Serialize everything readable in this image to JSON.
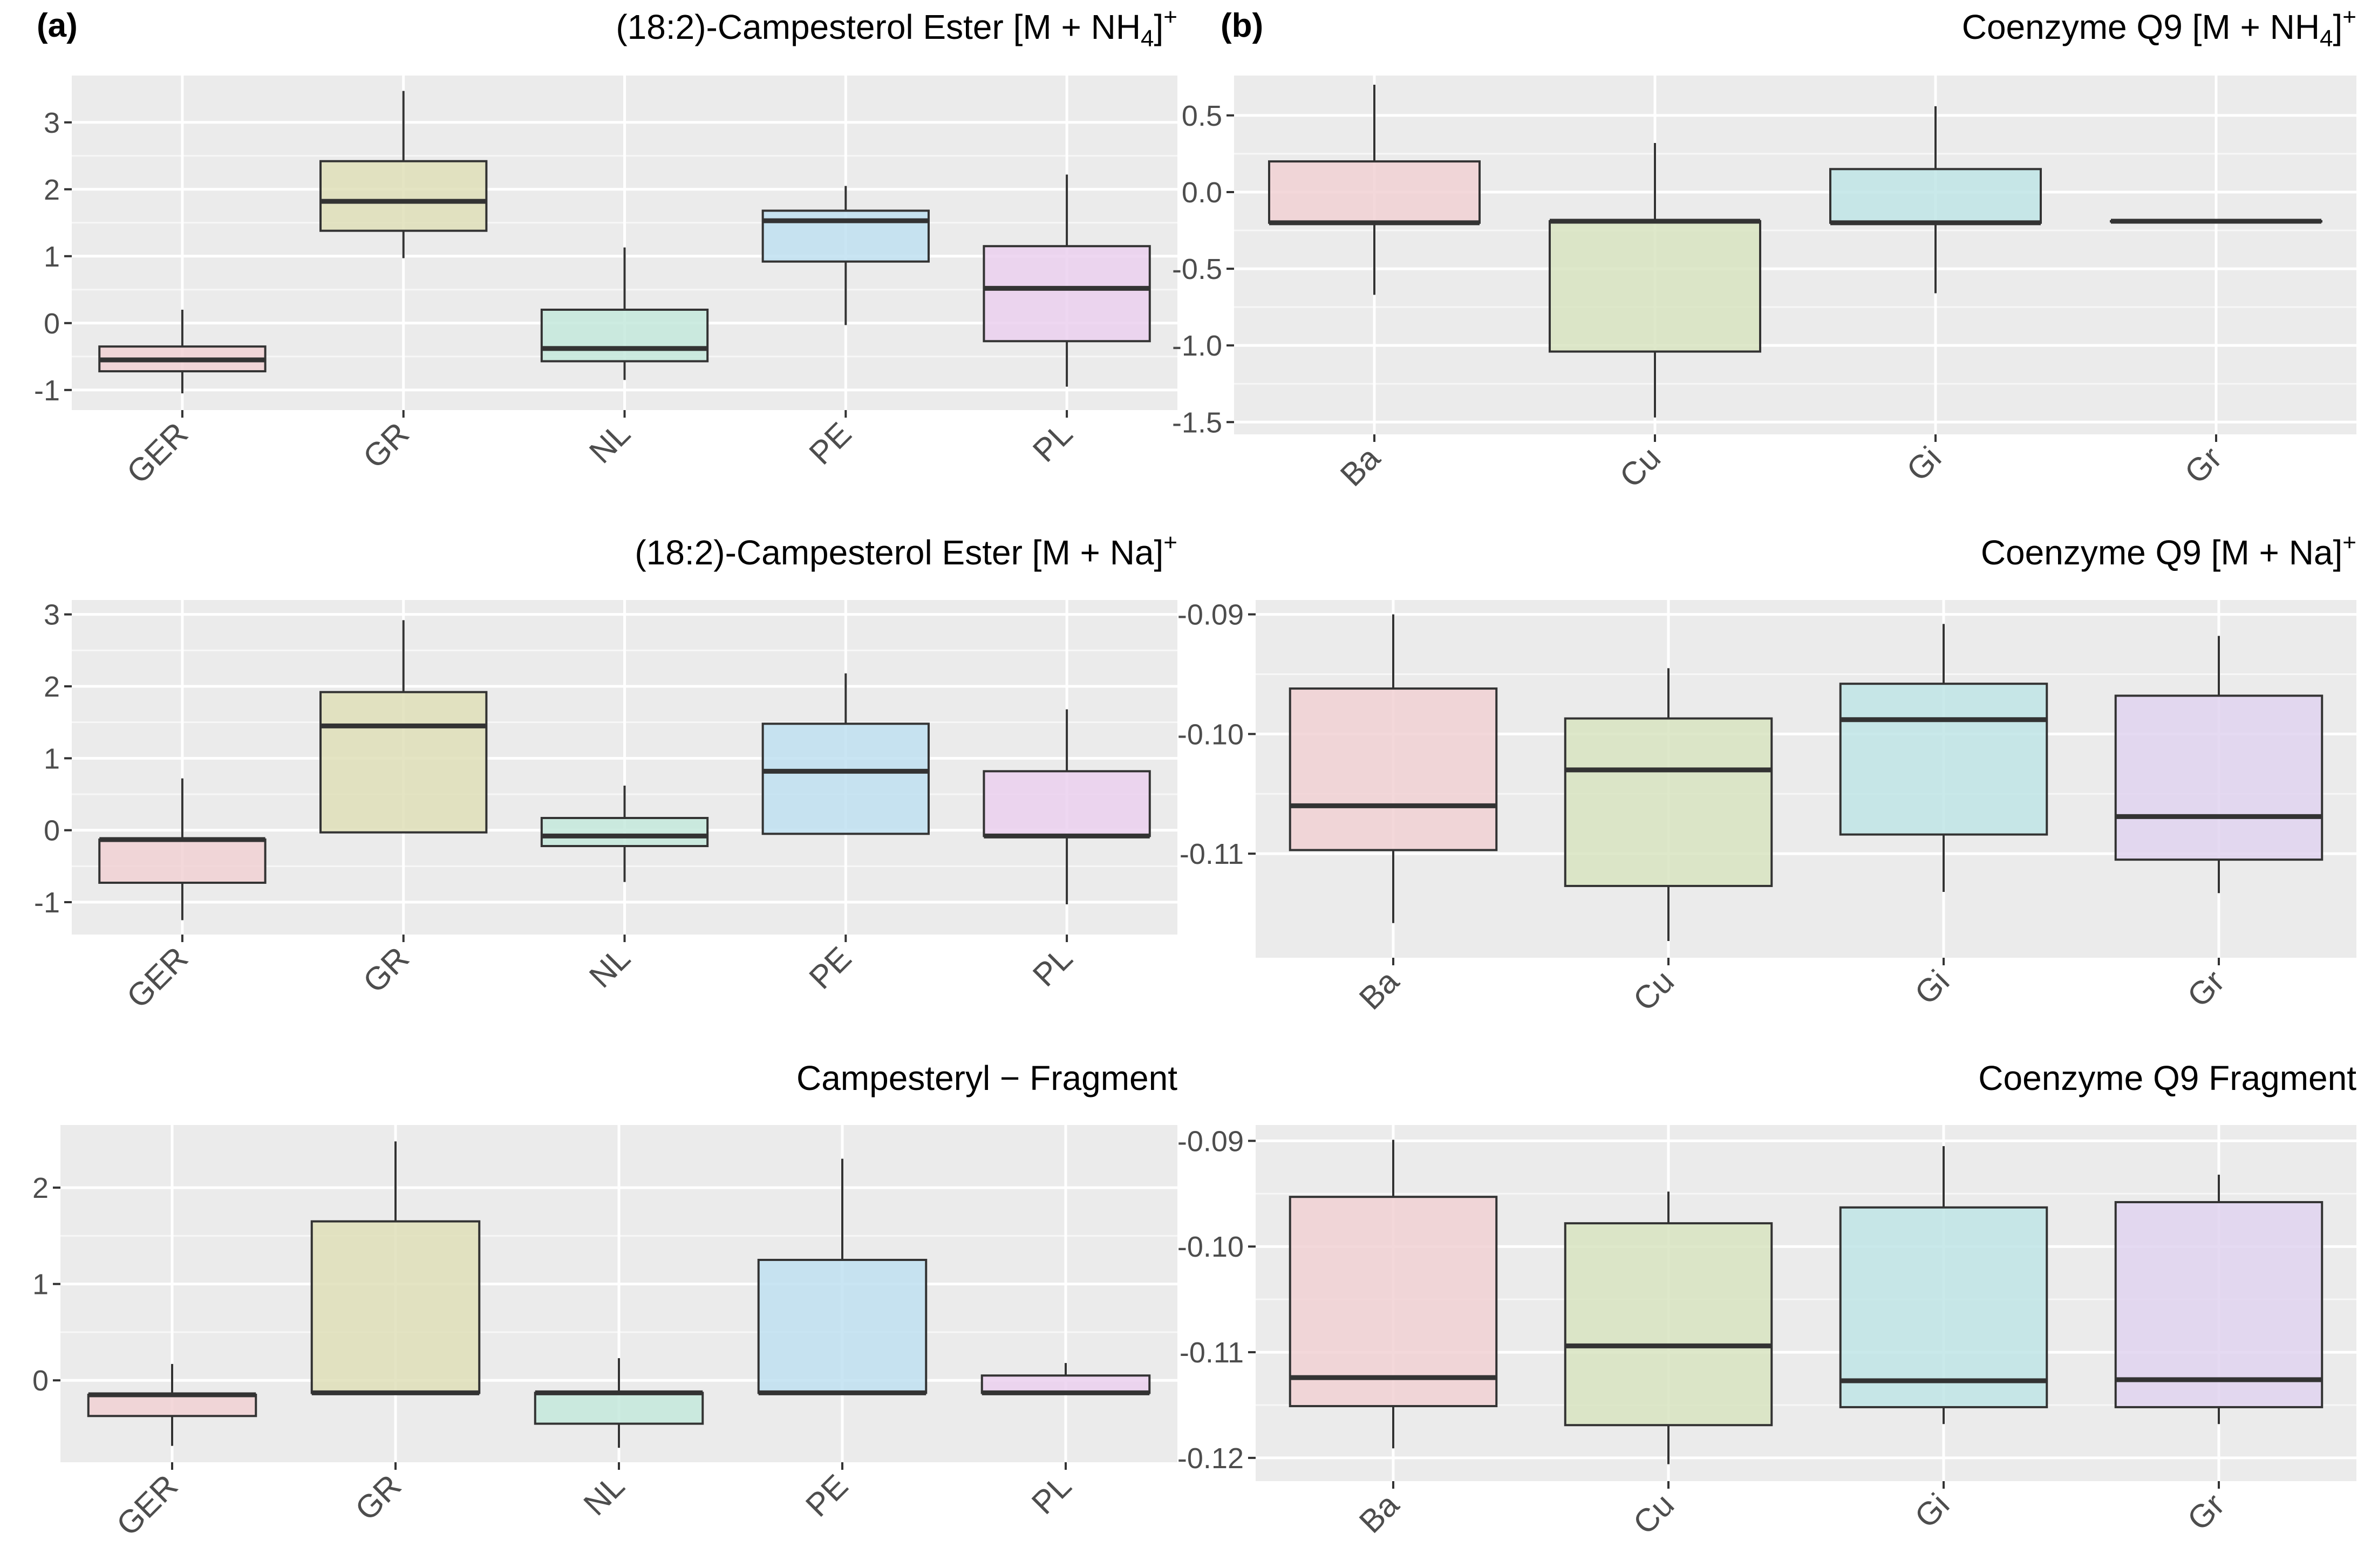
{
  "panel_labels": {
    "a": "(a)",
    "b": "(b)"
  },
  "chart_data": [
    {
      "type": "box",
      "id": "a1",
      "title": "(18:2)-Campesterol Ester [M + NH",
      "title_sub": "4",
      "title_end": "]",
      "title_sup": "+",
      "categories": [
        "GER",
        "GR",
        "NL",
        "PE",
        "PL"
      ],
      "yticks": [
        -1,
        0,
        1,
        2,
        3
      ],
      "yticklabels": [
        "-1",
        "0",
        "1",
        "2",
        "3"
      ],
      "ylim": [
        -1.3,
        3.7
      ],
      "boxes": [
        {
          "category": "GER",
          "whisker_low": -1.05,
          "q1": -0.72,
          "median": -0.55,
          "q3": -0.35,
          "whisker_high": 0.2,
          "fill": "#f1d1d4"
        },
        {
          "category": "GR",
          "whisker_low": 0.97,
          "q1": 1.38,
          "median": 1.82,
          "q3": 2.42,
          "whisker_high": 3.47,
          "fill": "#dfdfb8"
        },
        {
          "category": "NL",
          "whisker_low": -0.85,
          "q1": -0.57,
          "median": -0.38,
          "q3": 0.2,
          "whisker_high": 1.13,
          "fill": "#c4e9dc"
        },
        {
          "category": "PE",
          "whisker_low": -0.03,
          "q1": 0.92,
          "median": 1.53,
          "q3": 1.68,
          "whisker_high": 2.05,
          "fill": "#bfe0f1"
        },
        {
          "category": "PL",
          "whisker_low": -0.95,
          "q1": -0.27,
          "median": 0.52,
          "q3": 1.15,
          "whisker_high": 2.22,
          "fill": "#ebd0ee"
        }
      ]
    },
    {
      "type": "box",
      "id": "a2",
      "title": "(18:2)-Campesterol Ester [M + Na]",
      "title_sup": "+",
      "categories": [
        "GER",
        "GR",
        "NL",
        "PE",
        "PL"
      ],
      "yticks": [
        -1,
        0,
        1,
        2,
        3
      ],
      "yticklabels": [
        "-1",
        "0",
        "1",
        "2",
        "3"
      ],
      "ylim": [
        -1.45,
        3.2
      ],
      "boxes": [
        {
          "category": "GER",
          "whisker_low": -1.25,
          "q1": -0.73,
          "median": -0.13,
          "q3": -0.13,
          "whisker_high": 0.72,
          "fill": "#f1d1d4"
        },
        {
          "category": "GR",
          "whisker_low": -0.03,
          "q1": -0.03,
          "median": 1.45,
          "q3": 1.92,
          "whisker_high": 2.92,
          "fill": "#dfdfb8"
        },
        {
          "category": "NL",
          "whisker_low": -0.72,
          "q1": -0.22,
          "median": -0.08,
          "q3": 0.17,
          "whisker_high": 0.62,
          "fill": "#c4e9dc"
        },
        {
          "category": "PE",
          "whisker_low": -0.05,
          "q1": -0.05,
          "median": 0.82,
          "q3": 1.48,
          "whisker_high": 2.18,
          "fill": "#bfe0f1"
        },
        {
          "category": "PL",
          "whisker_low": -1.03,
          "q1": -0.08,
          "median": -0.08,
          "q3": 0.82,
          "whisker_high": 1.68,
          "fill": "#ebd0ee"
        }
      ]
    },
    {
      "type": "box",
      "id": "a3",
      "title": "Campesteryl − Fragment",
      "categories": [
        "GER",
        "GR",
        "NL",
        "PE",
        "PL"
      ],
      "yticks": [
        0,
        1,
        2
      ],
      "yticklabels": [
        "0",
        "1",
        "2"
      ],
      "ylim": [
        -0.85,
        2.65
      ],
      "boxes": [
        {
          "category": "GER",
          "whisker_low": -0.68,
          "q1": -0.37,
          "median": -0.15,
          "q3": -0.15,
          "whisker_high": 0.17,
          "fill": "#f1d1d4"
        },
        {
          "category": "GR",
          "whisker_low": -0.13,
          "q1": -0.13,
          "median": -0.13,
          "q3": 1.65,
          "whisker_high": 2.48,
          "fill": "#dfdfb8"
        },
        {
          "category": "NL",
          "whisker_low": -0.7,
          "q1": -0.45,
          "median": -0.13,
          "q3": -0.13,
          "whisker_high": 0.23,
          "fill": "#c4e9dc"
        },
        {
          "category": "PE",
          "whisker_low": -0.13,
          "q1": -0.13,
          "median": -0.13,
          "q3": 1.25,
          "whisker_high": 2.3,
          "fill": "#bfe0f1"
        },
        {
          "category": "PL",
          "whisker_low": -0.13,
          "q1": -0.13,
          "median": -0.13,
          "q3": 0.05,
          "whisker_high": 0.18,
          "fill": "#ebd0ee"
        }
      ]
    },
    {
      "type": "box",
      "id": "b1",
      "title": "Coenzyme Q9 [M + NH",
      "title_sub": "4",
      "title_end": "]",
      "title_sup": "+",
      "categories": [
        "Ba",
        "Cu",
        "Gi",
        "Gr"
      ],
      "yticks": [
        -1.5,
        -1.0,
        -0.5,
        0.0,
        0.5
      ],
      "yticklabels": [
        "-1.5",
        "-1.0",
        "-0.5",
        "0.0",
        "0.5"
      ],
      "ylim": [
        -1.58,
        0.76
      ],
      "boxes": [
        {
          "category": "Ba",
          "whisker_low": -0.67,
          "q1": -0.2,
          "median": -0.2,
          "q3": 0.2,
          "whisker_high": 0.7,
          "fill": "#f1d1d4"
        },
        {
          "category": "Cu",
          "whisker_low": -1.47,
          "q1": -1.04,
          "median": -0.19,
          "q3": -0.19,
          "whisker_high": 0.32,
          "fill": "#d8e4c1"
        },
        {
          "category": "Gi",
          "whisker_low": -0.66,
          "q1": -0.2,
          "median": -0.2,
          "q3": 0.15,
          "whisker_high": 0.56,
          "fill": "#bfe5e6"
        },
        {
          "category": "Gr",
          "whisker_low": -0.19,
          "q1": -0.19,
          "median": -0.19,
          "q3": -0.19,
          "whisker_high": -0.19,
          "fill": "#e1d3f0"
        }
      ]
    },
    {
      "type": "box",
      "id": "b2",
      "title": "Coenzyme Q9 [M + Na]",
      "title_sup": "+",
      "categories": [
        "Ba",
        "Cu",
        "Gi",
        "Gr"
      ],
      "yticks": [
        -0.11,
        -0.1,
        -0.09
      ],
      "yticklabels": [
        "-0.11",
        "-0.10",
        "-0.09"
      ],
      "ylim": [
        -0.1187,
        -0.0888
      ],
      "boxes": [
        {
          "category": "Ba",
          "whisker_low": -0.1158,
          "q1": -0.1097,
          "median": -0.106,
          "q3": -0.0962,
          "whisker_high": -0.09,
          "fill": "#f1d1d4"
        },
        {
          "category": "Cu",
          "whisker_low": -0.1173,
          "q1": -0.1127,
          "median": -0.103,
          "q3": -0.0987,
          "whisker_high": -0.0945,
          "fill": "#d8e4c1"
        },
        {
          "category": "Gi",
          "whisker_low": -0.1132,
          "q1": -0.1084,
          "median": -0.0988,
          "q3": -0.0958,
          "whisker_high": -0.0908,
          "fill": "#bfe5e6"
        },
        {
          "category": "Gr",
          "whisker_low": -0.1133,
          "q1": -0.1105,
          "median": -0.1069,
          "q3": -0.0968,
          "whisker_high": -0.0918,
          "fill": "#e1d3f0"
        }
      ]
    },
    {
      "type": "box",
      "id": "b3",
      "title": "Coenzyme Q9 Fragment",
      "categories": [
        "Ba",
        "Cu",
        "Gi",
        "Gr"
      ],
      "yticks": [
        -0.12,
        -0.11,
        -0.1,
        -0.09
      ],
      "yticklabels": [
        "-0.12",
        "-0.11",
        "-0.10",
        "-0.09"
      ],
      "ylim": [
        -0.1222,
        -0.0885
      ],
      "boxes": [
        {
          "category": "Ba",
          "whisker_low": -0.1191,
          "q1": -0.1151,
          "median": -0.1124,
          "q3": -0.0953,
          "whisker_high": -0.0899,
          "fill": "#f1d1d4"
        },
        {
          "category": "Cu",
          "whisker_low": -0.1206,
          "q1": -0.1169,
          "median": -0.1094,
          "q3": -0.0978,
          "whisker_high": -0.0948,
          "fill": "#d8e4c1"
        },
        {
          "category": "Gi",
          "whisker_low": -0.1168,
          "q1": -0.1152,
          "median": -0.1127,
          "q3": -0.0963,
          "whisker_high": -0.0905,
          "fill": "#bfe5e6"
        },
        {
          "category": "Gr",
          "whisker_low": -0.1168,
          "q1": -0.1152,
          "median": -0.1126,
          "q3": -0.0958,
          "whisker_high": -0.0932,
          "fill": "#e1d3f0"
        }
      ]
    }
  ]
}
